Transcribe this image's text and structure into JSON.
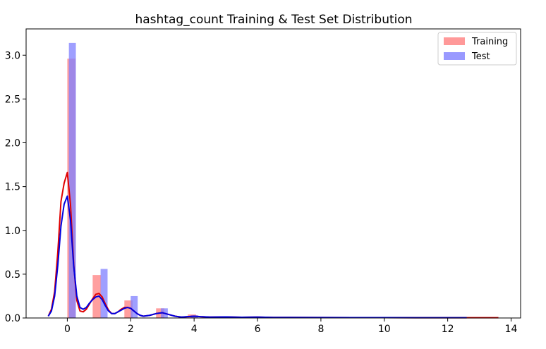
{
  "chart_data": {
    "type": "bar",
    "title": "hashtag_count Training & Test Set Distribution",
    "xlabel": "",
    "ylabel": "",
    "xlim": [
      -1.3,
      14.3
    ],
    "ylim": [
      0,
      3.3
    ],
    "x_ticks": [
      0,
      2,
      4,
      6,
      8,
      10,
      12,
      14
    ],
    "y_ticks": [
      0.0,
      0.5,
      1.0,
      1.5,
      2.0,
      2.5,
      3.0
    ],
    "grid": false,
    "legend_position": "top-right",
    "series": [
      {
        "name": "Training",
        "color": "#ff7f7f",
        "kde_color": "#e00000",
        "histogram": {
          "bin_left_edges": [
            0.0,
            0.8,
            1.8,
            2.8,
            3.8,
            4.8,
            5.8,
            6.8,
            7.8,
            8.8,
            9.8,
            10.8,
            11.8,
            12.8
          ],
          "bin_width": 0.26,
          "values": [
            2.96,
            0.49,
            0.2,
            0.11,
            0.04,
            0.02,
            0.012,
            0.008,
            0.006,
            0.005,
            0.004,
            0.003,
            0.003,
            0.003
          ]
        },
        "kde": {
          "x": [
            -0.6,
            -0.5,
            -0.4,
            -0.3,
            -0.2,
            -0.1,
            0,
            0.1,
            0.2,
            0.3,
            0.4,
            0.5,
            0.6,
            0.7,
            0.8,
            0.9,
            1.0,
            1.1,
            1.2,
            1.3,
            1.4,
            1.5,
            1.6,
            1.7,
            1.8,
            1.9,
            2.0,
            2.1,
            2.2,
            2.3,
            2.4,
            2.6,
            2.8,
            3.0,
            3.2,
            3.4,
            3.6,
            3.8,
            4.0,
            4.2,
            4.5,
            5.0,
            5.5,
            6.0,
            6.5,
            7.0,
            8.0,
            9.0,
            10.0,
            11.0,
            12.0,
            13.0,
            13.6
          ],
          "y": [
            0.02,
            0.1,
            0.3,
            0.75,
            1.33,
            1.54,
            1.66,
            1.3,
            0.62,
            0.2,
            0.08,
            0.07,
            0.1,
            0.16,
            0.22,
            0.27,
            0.28,
            0.24,
            0.16,
            0.09,
            0.05,
            0.05,
            0.07,
            0.1,
            0.12,
            0.12,
            0.11,
            0.08,
            0.05,
            0.03,
            0.02,
            0.03,
            0.05,
            0.06,
            0.04,
            0.02,
            0.01,
            0.015,
            0.02,
            0.015,
            0.01,
            0.012,
            0.008,
            0.01,
            0.006,
            0.006,
            0.005,
            0.004,
            0.004,
            0.003,
            0.003,
            0.003,
            0.003
          ]
        }
      },
      {
        "name": "Test",
        "color": "#7f7fff",
        "kde_color": "#0000e0",
        "histogram": {
          "bin_left_edges": [
            0.05,
            1.05,
            2.0,
            2.95,
            3.9,
            4.9,
            5.9,
            6.9,
            7.9,
            8.9,
            9.9
          ],
          "bin_width": 0.22,
          "values": [
            3.14,
            0.56,
            0.25,
            0.11,
            0.03,
            0.02,
            0.012,
            0.008,
            0.006,
            0.005,
            0.004
          ]
        },
        "kde": {
          "x": [
            -0.6,
            -0.5,
            -0.4,
            -0.3,
            -0.2,
            -0.1,
            0,
            0.1,
            0.2,
            0.3,
            0.4,
            0.5,
            0.6,
            0.7,
            0.8,
            0.9,
            1.0,
            1.1,
            1.2,
            1.3,
            1.4,
            1.5,
            1.6,
            1.7,
            1.8,
            1.9,
            2.0,
            2.1,
            2.2,
            2.3,
            2.4,
            2.6,
            2.8,
            3.0,
            3.2,
            3.4,
            3.6,
            3.8,
            4.0,
            4.2,
            4.5,
            5.0,
            5.5,
            6.0,
            6.5,
            7.0,
            8.0,
            9.0,
            10.0,
            11.0,
            12.0,
            12.6
          ],
          "y": [
            0.02,
            0.08,
            0.25,
            0.6,
            1.05,
            1.3,
            1.39,
            1.12,
            0.6,
            0.25,
            0.12,
            0.1,
            0.12,
            0.17,
            0.21,
            0.24,
            0.25,
            0.21,
            0.14,
            0.08,
            0.05,
            0.05,
            0.07,
            0.09,
            0.11,
            0.12,
            0.11,
            0.08,
            0.05,
            0.03,
            0.02,
            0.03,
            0.05,
            0.06,
            0.04,
            0.02,
            0.01,
            0.015,
            0.02,
            0.015,
            0.01,
            0.012,
            0.008,
            0.01,
            0.006,
            0.006,
            0.005,
            0.004,
            0.004,
            0.003,
            0.003,
            0.003
          ]
        }
      }
    ]
  }
}
